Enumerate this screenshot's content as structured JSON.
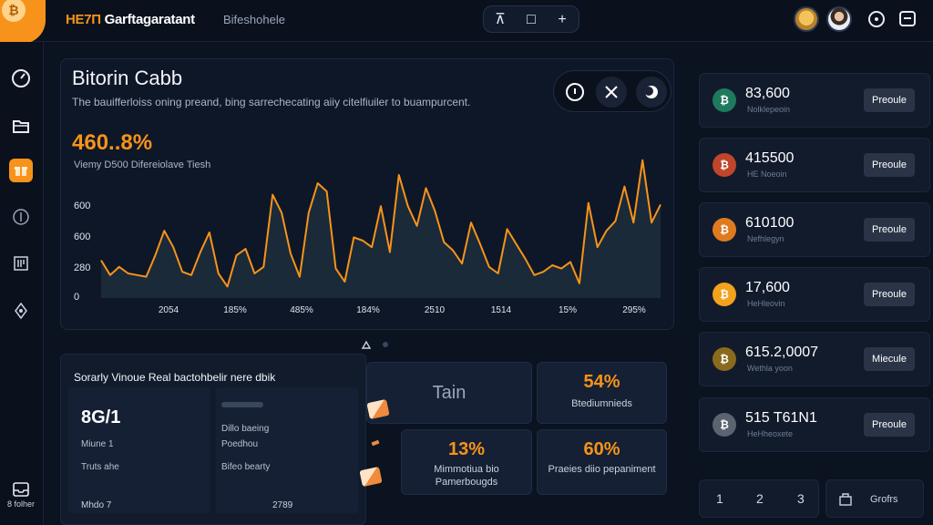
{
  "header": {
    "brand_accent": "HE7П",
    "brand_rest": " Garftagaratant",
    "subnav": "Bifeshohele",
    "tools": {
      "tool1": "⊼",
      "tool2": "□",
      "tool3": "+"
    },
    "icons": [
      "coin-avatar",
      "user-avatar",
      "record-icon",
      "window-icon"
    ]
  },
  "sidebar": {
    "icons": [
      "gauge-icon",
      "folder-icon",
      "gift-icon",
      "coin-icon",
      "notes-icon",
      "network-icon"
    ],
    "active_index": 2,
    "footer_label": "8 folher"
  },
  "main": {
    "title": "Bitorin Cabb",
    "description": "The bauifferloiss oning preand, bing sarrechecating aiiy citelfiuiler to buampurcent.",
    "big_percent": "460..8%",
    "percent_sub": "Viemy D500 Difereiolave Tiesh",
    "actions": [
      "info-icon",
      "close-icon",
      "theme-toggle-icon"
    ]
  },
  "chart_data": {
    "type": "area",
    "y_ticks": [
      "600",
      "600",
      "280",
      "0"
    ],
    "x_ticks": [
      "2054",
      "185%",
      "485%",
      "184%",
      "2510",
      "1514",
      "15%",
      "295%"
    ],
    "ylim": [
      0,
      800
    ],
    "values": [
      230,
      140,
      190,
      150,
      140,
      130,
      260,
      410,
      310,
      160,
      140,
      280,
      400,
      150,
      70,
      260,
      300,
      150,
      190,
      630,
      520,
      270,
      130,
      520,
      700,
      650,
      180,
      100,
      370,
      350,
      310,
      560,
      280,
      750,
      560,
      440,
      670,
      530,
      340,
      290,
      210,
      460,
      330,
      190,
      150,
      420,
      330,
      240,
      140,
      160,
      200,
      180,
      220,
      90,
      580,
      310,
      410,
      470,
      680,
      460,
      840,
      460,
      570
    ],
    "series_color": "#f7931a",
    "fill_color": "#1a2a38"
  },
  "stats": {
    "title": "Sorarly Vinoue Real bactohbelir nere dbik",
    "big_value": "8G/1",
    "label1": "Miune 1",
    "label2": "Truts ahe",
    "right1": "Dillo baeing",
    "right2": "Poedhou",
    "right3": "Bifeo bearty",
    "foot_left": "Mhdo 7",
    "foot_right": "2789"
  },
  "tiles": {
    "tain_label": "Tain",
    "t54_value": "54%",
    "t54_sub": "Btediumnieds",
    "t13_value": "13%",
    "t13_sub1": "Mimmotiua bio",
    "t13_sub2": "Pamerbougds",
    "t60_value": "60%",
    "t60_sub": "Praeies diio pepaniment"
  },
  "coins": [
    {
      "icon": "₿",
      "color": "#1d7a5e",
      "value": "83,600",
      "sub": "Nolklepeoin",
      "button": "Preoule"
    },
    {
      "icon": "₿",
      "color": "#c0452a",
      "value": "415500",
      "sub": "HE Noeoin",
      "button": "Preoule"
    },
    {
      "icon": "₿",
      "color": "#e07a1f",
      "value": "610100",
      "sub": "Nefhlegyn",
      "button": "Preoule"
    },
    {
      "icon": "₿",
      "color": "#f3a21c",
      "value": "17,600",
      "sub": "HeHleovin",
      "button": "Preoule"
    },
    {
      "icon": "₿",
      "color": "#8a6a1c",
      "value": "615.2,0007",
      "sub": "Wethla yoon",
      "button": "Miecule"
    },
    {
      "icon": "₿",
      "color": "#5b6270",
      "value": "515 T61N1",
      "sub": "HeHheoxete",
      "button": "Preoule"
    }
  ],
  "pagination": {
    "p1": "1",
    "p2": "2",
    "p3": "3",
    "extra": "Grofrs"
  }
}
